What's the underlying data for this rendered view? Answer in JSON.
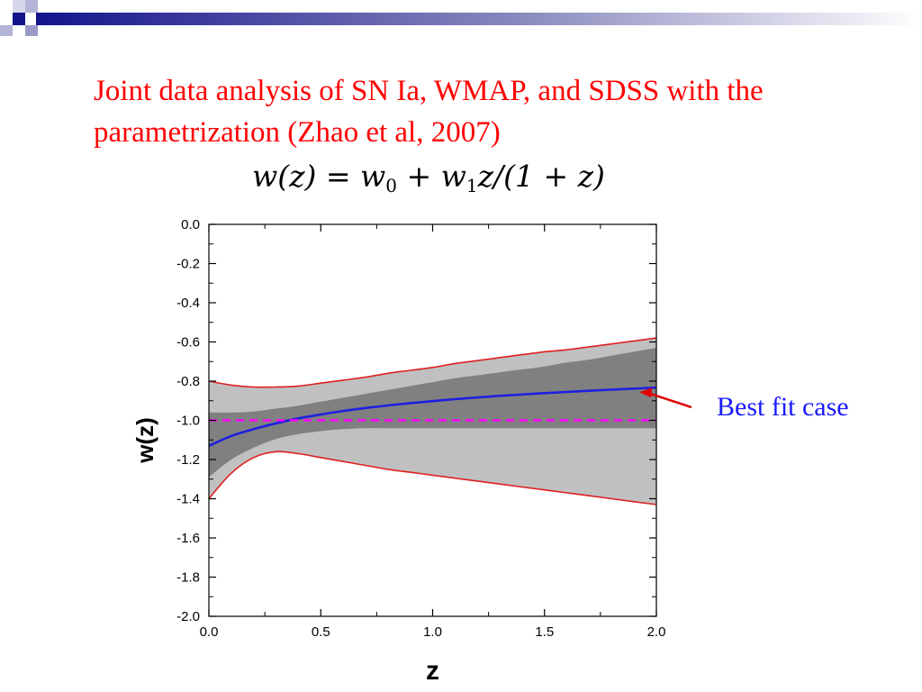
{
  "slide": {
    "title": "Joint data analysis of SN Ia, WMAP, and SDSS with the parametrization (Zhao et al, 2007)",
    "formula": {
      "lhs": "w(z)",
      "eq": " = ",
      "w0": "w",
      "w0_sub": "0",
      "plus": " + ",
      "w1": "w",
      "w1_sub": "1",
      "rest": "z/(1 + z)"
    },
    "annotation": "Best fit case",
    "colors": {
      "title": "#ff0000",
      "annotation": "#1a1aff",
      "arrow": "#e00000",
      "deco_dark": "#14148c",
      "deco_light": "#9a9ac8"
    }
  },
  "chart_data": {
    "type": "line",
    "title": "",
    "xlabel": "z",
    "ylabel": "w(z)",
    "xlim": [
      0.0,
      2.0
    ],
    "ylim": [
      -2.0,
      0.0
    ],
    "x_ticks": [
      "0.0",
      "0.5",
      "1.0",
      "1.5",
      "2.0"
    ],
    "x_tick_values": [
      0.0,
      0.5,
      1.0,
      1.5,
      2.0
    ],
    "y_ticks": [
      "0.0",
      "-0.2",
      "-0.4",
      "-0.6",
      "-0.8",
      "-1.0",
      "-1.2",
      "-1.4",
      "-1.6",
      "-1.8",
      "-2.0"
    ],
    "y_tick_values": [
      0.0,
      -0.2,
      -0.4,
      -0.6,
      -0.8,
      -1.0,
      -1.2,
      -1.4,
      -1.6,
      -1.8,
      -2.0
    ],
    "grid": false,
    "x": [
      0.0,
      0.1,
      0.2,
      0.3,
      0.4,
      0.5,
      0.6,
      0.7,
      0.8,
      0.9,
      1.0,
      1.1,
      1.2,
      1.3,
      1.4,
      1.5,
      1.6,
      1.7,
      1.8,
      1.9,
      2.0
    ],
    "bands": [
      {
        "level": "2-sigma",
        "color": "#c0c0c0",
        "upper": [
          -0.8,
          -0.82,
          -0.83,
          -0.83,
          -0.825,
          -0.81,
          -0.795,
          -0.78,
          -0.76,
          -0.745,
          -0.73,
          -0.71,
          -0.695,
          -0.68,
          -0.665,
          -0.65,
          -0.64,
          -0.625,
          -0.61,
          -0.595,
          -0.58
        ],
        "lower": [
          -1.4,
          -1.27,
          -1.19,
          -1.16,
          -1.17,
          -1.19,
          -1.21,
          -1.23,
          -1.25,
          -1.265,
          -1.28,
          -1.295,
          -1.31,
          -1.325,
          -1.34,
          -1.355,
          -1.37,
          -1.385,
          -1.4,
          -1.415,
          -1.43
        ]
      },
      {
        "level": "1-sigma",
        "color": "#808080",
        "upper": [
          -0.96,
          -0.96,
          -0.955,
          -0.94,
          -0.925,
          -0.905,
          -0.885,
          -0.865,
          -0.845,
          -0.825,
          -0.805,
          -0.785,
          -0.77,
          -0.755,
          -0.74,
          -0.725,
          -0.705,
          -0.69,
          -0.67,
          -0.65,
          -0.63
        ],
        "lower": [
          -1.29,
          -1.2,
          -1.14,
          -1.095,
          -1.07,
          -1.055,
          -1.045,
          -1.04,
          -1.04,
          -1.04,
          -1.04,
          -1.04,
          -1.04,
          -1.04,
          -1.04,
          -1.04,
          -1.04,
          -1.04,
          -1.04,
          -1.04,
          -1.04
        ]
      }
    ],
    "series": [
      {
        "role": "best-fit",
        "color": "#1f1fe0",
        "style": "solid",
        "values": [
          -1.13,
          -1.08,
          -1.045,
          -1.015,
          -0.99,
          -0.97,
          -0.952,
          -0.937,
          -0.924,
          -0.912,
          -0.902,
          -0.892,
          -0.883,
          -0.875,
          -0.868,
          -0.861,
          -0.855,
          -0.849,
          -0.843,
          -0.838,
          -0.833
        ]
      },
      {
        "role": "w=-1 reference",
        "color": "#ff00ff",
        "style": "dashed",
        "values": [
          -1.0,
          -1.0,
          -1.0,
          -1.0,
          -1.0,
          -1.0,
          -1.0,
          -1.0,
          -1.0,
          -1.0,
          -1.0,
          -1.0,
          -1.0,
          -1.0,
          -1.0,
          -1.0,
          -1.0,
          -1.0,
          -1.0,
          -1.0,
          -1.0
        ]
      }
    ],
    "outline_color": "#e02020",
    "arrow_target": {
      "x": 1.9,
      "y": -0.838
    }
  }
}
